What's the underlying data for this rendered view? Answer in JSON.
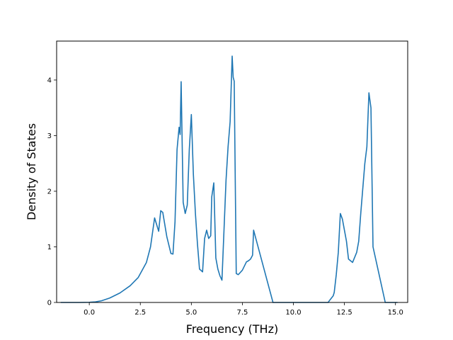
{
  "chart_data": {
    "type": "line",
    "title": "",
    "xlabel": "Frequency (THz)",
    "ylabel": "Density of States",
    "xlim": [
      -1.6,
      15.6
    ],
    "ylim": [
      0,
      4.7
    ],
    "grid": false,
    "x_ticks": [
      0.0,
      2.5,
      5.0,
      7.5,
      10.0,
      12.5,
      15.0
    ],
    "x_tick_labels": [
      "0.0",
      "2.5",
      "5.0",
      "7.5",
      "10.0",
      "12.5",
      "15.0"
    ],
    "y_ticks": [
      0,
      1,
      2,
      3,
      4
    ],
    "y_tick_labels": [
      "0",
      "1",
      "2",
      "3",
      "4"
    ],
    "color": "#1f77b4",
    "series": [
      {
        "x": [
          -1.4,
          -0.5,
          0.0,
          0.3,
          0.6,
          1.0,
          1.5,
          2.0,
          2.4,
          2.8,
          3.0,
          3.2,
          3.4,
          3.5,
          3.6,
          3.8,
          4.0,
          4.1,
          4.2,
          4.3,
          4.4,
          4.45,
          4.5,
          4.6,
          4.7,
          4.8,
          4.9,
          5.0,
          5.1,
          5.2,
          5.3,
          5.4,
          5.55,
          5.65,
          5.75,
          5.85,
          5.95,
          6.0,
          6.1,
          6.2,
          6.3,
          6.4,
          6.5,
          6.7,
          6.8,
          6.9,
          7.0,
          7.05,
          7.1,
          7.2,
          7.3,
          7.5,
          7.7,
          7.8,
          7.9,
          8.0,
          8.05,
          9.0,
          10.0,
          11.0,
          11.5,
          11.7,
          11.8,
          11.95,
          12.0,
          12.1,
          12.2,
          12.3,
          12.4,
          12.5,
          12.6,
          12.7,
          12.9,
          13.1,
          13.2,
          13.3,
          13.5,
          13.6,
          13.7,
          13.8,
          13.9,
          14.5,
          15.0,
          15.1
        ],
        "y": [
          0,
          0,
          0.003,
          0.01,
          0.03,
          0.08,
          0.17,
          0.3,
          0.45,
          0.72,
          1.0,
          1.52,
          1.28,
          1.65,
          1.62,
          1.18,
          0.88,
          0.87,
          1.45,
          2.75,
          3.15,
          3.02,
          3.97,
          1.8,
          1.6,
          1.75,
          2.75,
          3.38,
          2.3,
          1.6,
          1.05,
          0.6,
          0.55,
          1.15,
          1.3,
          1.15,
          1.2,
          1.9,
          2.15,
          0.8,
          0.6,
          0.48,
          0.4,
          2.2,
          2.8,
          3.25,
          4.43,
          4.05,
          3.98,
          0.52,
          0.5,
          0.58,
          0.73,
          0.75,
          0.78,
          0.85,
          1.3,
          0,
          0,
          0,
          0,
          0,
          0.05,
          0.12,
          0.18,
          0.5,
          0.9,
          1.6,
          1.5,
          1.3,
          1.1,
          0.78,
          0.72,
          0.9,
          1.1,
          1.6,
          2.5,
          2.8,
          3.77,
          3.5,
          1.0,
          0,
          0,
          0
        ]
      }
    ]
  }
}
